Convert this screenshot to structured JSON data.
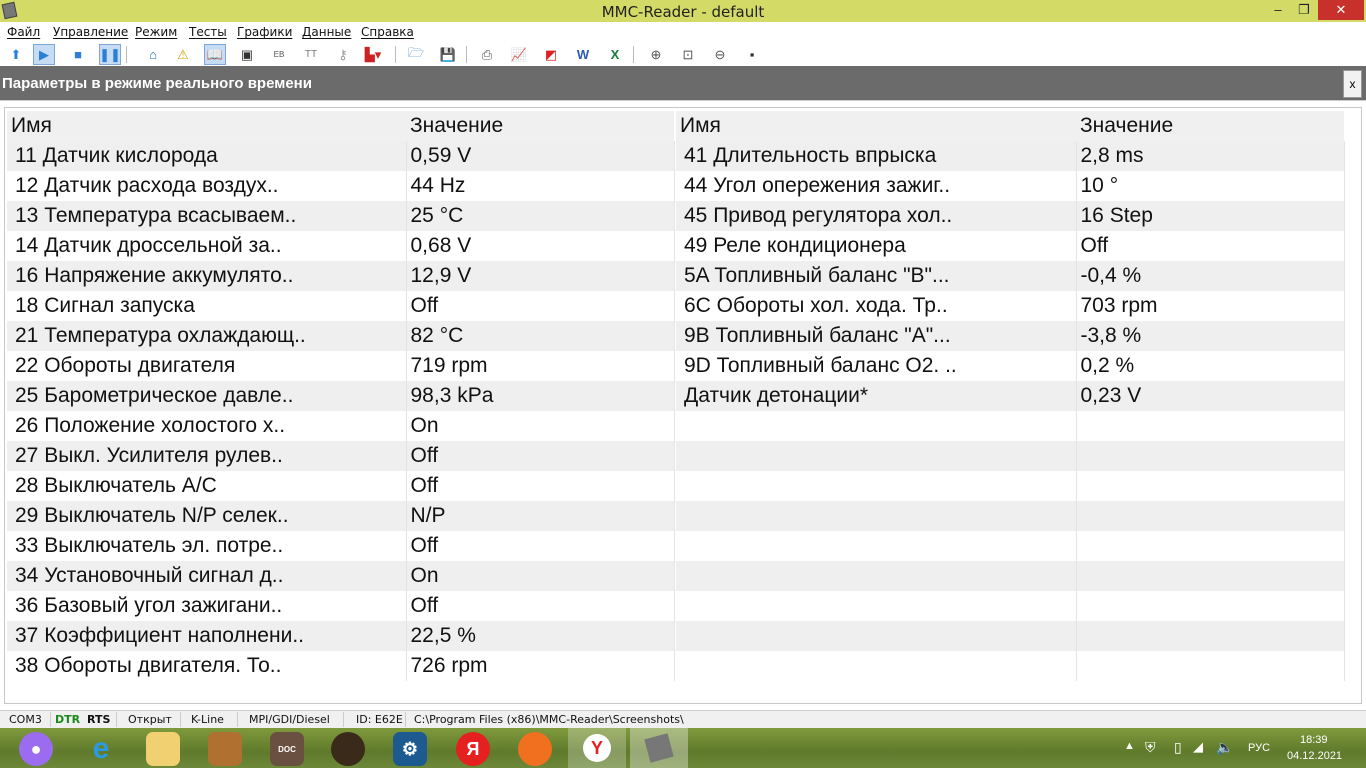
{
  "window": {
    "title": "MMC-Reader - default",
    "minimize": "–",
    "maximize": "❐",
    "close": "✕"
  },
  "menu": [
    "Файл",
    "Управление",
    "Режим",
    "Тесты",
    "Графики",
    "Данные",
    "Справка"
  ],
  "toolbar": {
    "icons": [
      "arrow-up-icon",
      "play-icon",
      "stop-icon",
      "pause-icon",
      "home-icon",
      "warning-icon",
      "book-icon",
      "monitor-icon",
      "hex-icon",
      "text-icon",
      "key-icon",
      "chart-blocks-icon",
      "folder-open-icon",
      "save-icon",
      "print-icon",
      "chart-export-icon",
      "pdf-icon",
      "word-icon",
      "excel-icon",
      "zoom-in-icon",
      "zoom-fit-icon",
      "zoom-out-icon",
      "screenshot-icon"
    ]
  },
  "panel": {
    "title": "Параметры в режиме реального времени",
    "close": "x"
  },
  "table": {
    "headers": {
      "name": "Имя",
      "value": "Значение"
    },
    "left": [
      {
        "name": "11 Датчик кислорода",
        "value": "0,59 V"
      },
      {
        "name": "12 Датчик расхода воздух..",
        "value": "44 Hz"
      },
      {
        "name": "13 Температура всасываем..",
        "value": "25 °C"
      },
      {
        "name": "14 Датчик дроссельной за..",
        "value": "0,68 V"
      },
      {
        "name": "16 Напряжение аккумулято..",
        "value": "12,9 V"
      },
      {
        "name": "18 Сигнал запуска",
        "value": "Off"
      },
      {
        "name": "21 Температура охлаждающ..",
        "value": "82 °C"
      },
      {
        "name": "22 Обороты двигателя",
        "value": "719 rpm"
      },
      {
        "name": "25 Барометрическое давле..",
        "value": "98,3 kPa"
      },
      {
        "name": "26 Положение холостого х..",
        "value": "On"
      },
      {
        "name": "27 Выкл. Усилителя рулев..",
        "value": "Off"
      },
      {
        "name": "28 Выключатель A/C",
        "value": "Off"
      },
      {
        "name": "29 Выключатель N/P селек..",
        "value": "N/P"
      },
      {
        "name": "33 Выключатель эл. потре..",
        "value": "Off"
      },
      {
        "name": "34 Установочный сигнал д..",
        "value": "On"
      },
      {
        "name": "36 Базовый угол зажигани..",
        "value": "Off"
      },
      {
        "name": "37 Коэффициент наполнени..",
        "value": "22,5 %"
      },
      {
        "name": "38 Обороты двигателя. То..",
        "value": "726 rpm"
      }
    ],
    "right": [
      {
        "name": "41 Длительность впрыска",
        "value": "2,8 ms"
      },
      {
        "name": "44 Угол опережения зажиг..",
        "value": "10 °"
      },
      {
        "name": "45 Привод регулятора хол..",
        "value": "16 Step"
      },
      {
        "name": "49 Реле кондиционера",
        "value": "Off"
      },
      {
        "name": "5A Топливный баланс \"B\"...",
        "value": "-0,4 %"
      },
      {
        "name": "6C Обороты хол. хода. Тр..",
        "value": "703 rpm"
      },
      {
        "name": "9B Топливный баланс \"A\"...",
        "value": "-3,8 %"
      },
      {
        "name": "9D Топливный баланс O2. ..",
        "value": "0,2 %"
      },
      {
        "name": "Датчик детонации*",
        "value": "0,23 V"
      }
    ]
  },
  "status": {
    "port": "COM3",
    "dtr": "DTR",
    "rts": "RTS",
    "state": "Открыт",
    "protocol": "K-Line",
    "ecu_type": "MPI/GDI/Diesel",
    "id": "ID: E62E",
    "path": "C:\\Program Files (x86)\\MMC-Reader\\Screenshots\\",
    "dtr_color": "#1a8a1a"
  },
  "taskbar": {
    "apps": [
      "alice-icon",
      "internet-explorer-icon",
      "file-explorer-icon",
      "media-player-icon",
      "doc-icon",
      "speaker-icon",
      "settings-app-icon",
      "yandex-icon",
      "firefox-icon",
      "yandex-browser-icon",
      "mmc-reader-icon"
    ],
    "yandex_letter": "Я",
    "tray_lang": "РУС",
    "time": "18:39",
    "date": "04.12.2021"
  }
}
